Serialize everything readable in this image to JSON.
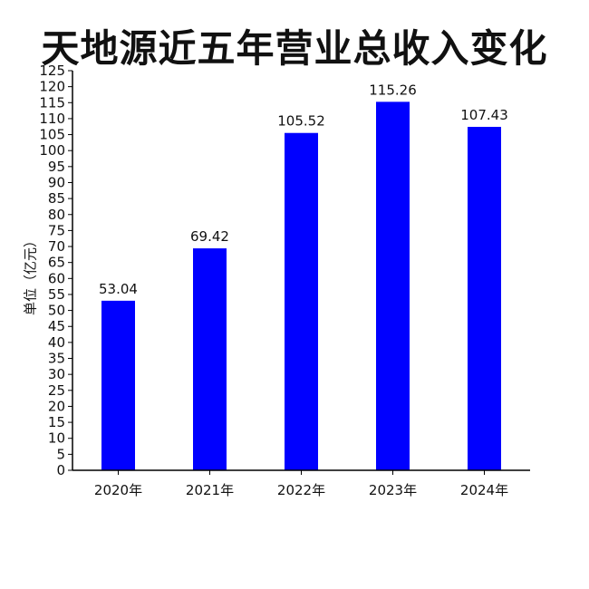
{
  "chart_data": {
    "type": "bar",
    "title": "天地源近五年营业总收入变化",
    "ylabel": "单位（亿元）",
    "xlabel": "",
    "categories": [
      "2020年",
      "2021年",
      "2022年",
      "2023年",
      "2024年"
    ],
    "values": [
      53.04,
      69.42,
      105.52,
      115.26,
      107.43
    ],
    "value_labels": [
      "53.04",
      "69.42",
      "105.52",
      "115.26",
      "107.43"
    ],
    "ylim": [
      0,
      125
    ],
    "yticks": [
      0,
      5,
      10,
      15,
      20,
      25,
      30,
      35,
      40,
      45,
      50,
      55,
      60,
      65,
      70,
      75,
      80,
      85,
      90,
      95,
      100,
      105,
      110,
      115,
      120,
      125
    ],
    "bar_color": "#0000ff",
    "grid": false,
    "legend": "none"
  }
}
